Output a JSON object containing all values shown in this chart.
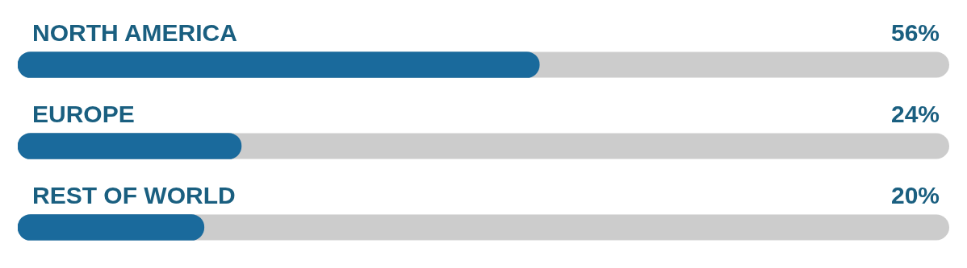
{
  "chart_data": {
    "type": "bar",
    "orientation": "horizontal",
    "categories": [
      "NORTH AMERICA",
      "EUROPE",
      "REST OF WORLD"
    ],
    "values": [
      56,
      24,
      20
    ],
    "value_labels": [
      "56%",
      "24%",
      "20%"
    ],
    "color": "#1a6a9c",
    "xlim": [
      0,
      100
    ],
    "tick_labels": false,
    "legend": false
  }
}
